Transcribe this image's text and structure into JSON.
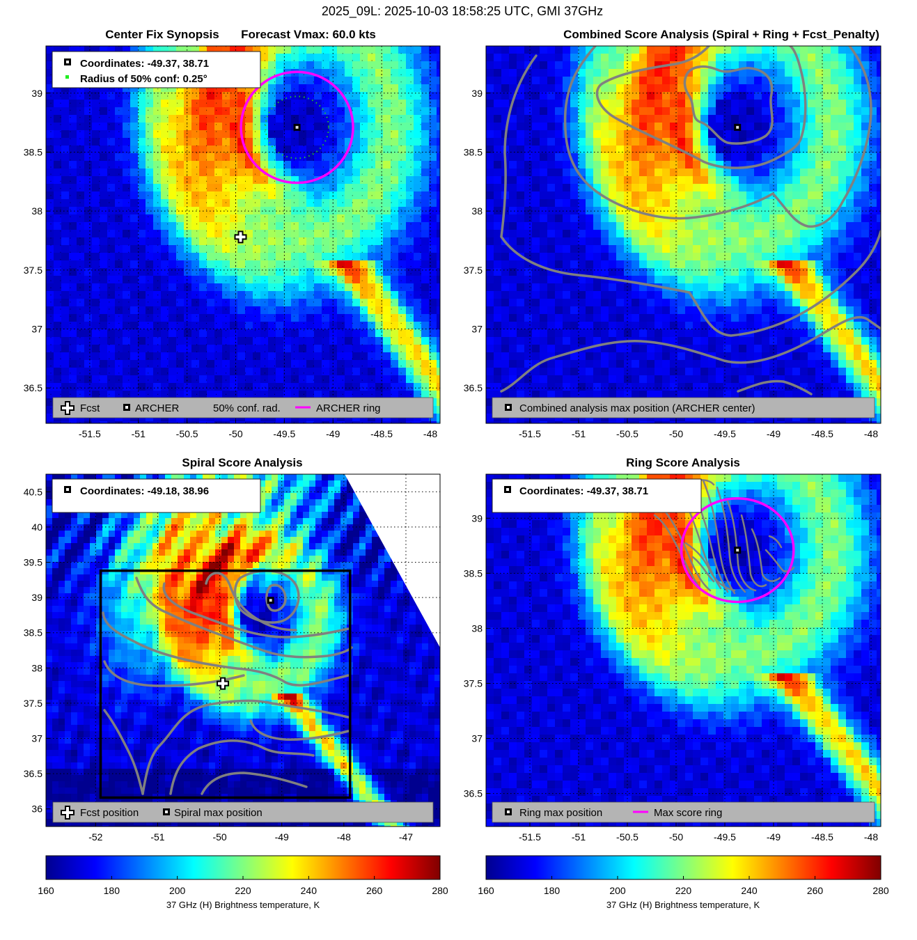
{
  "figure": {
    "suptitle": "2025_09L: 2025-10-03 18:58:25 UTC, GMI 37GHz"
  },
  "colors": {
    "archer_ring": "#ff00ff",
    "conf_radius": "#22cc22",
    "contour": "#808080",
    "legend_bg": "#b4b4b4",
    "colormap": [
      "#00008f",
      "#0000ff",
      "#0080ff",
      "#00ffff",
      "#80ff80",
      "#ffff00",
      "#ff8000",
      "#ff0000",
      "#800000"
    ]
  },
  "chart_data": [
    {
      "id": "synopsis",
      "type": "heatmap",
      "title_left": "Center Fix Synopsis",
      "title_right": "Forecast Vmax: 60.0 kts",
      "xlim": [
        -51.95,
        -47.9
      ],
      "ylim": [
        36.2,
        39.4
      ],
      "xticks": [
        -51.5,
        -51,
        -50.5,
        -50,
        -49.5,
        -49,
        -48.5,
        -48
      ],
      "xtick_labels": [
        "-51.5",
        "-51",
        "-50.5",
        "-50",
        "-49.5",
        "-49",
        "-48.5",
        "-48"
      ],
      "yticks": [
        36.5,
        37,
        37.5,
        38,
        38.5,
        39
      ],
      "ytick_labels": [
        "36.5",
        "37",
        "37.5",
        "38",
        "38.5",
        "39"
      ],
      "grid": true,
      "center": [
        -49.37,
        38.71
      ],
      "fcst": [
        -49.95,
        37.78
      ],
      "ring_radius_deg": 0.48,
      "conf_radius_deg": 0.25,
      "info_lines": [
        "Coordinates: -49.37, 38.71",
        "Radius of 50% conf: 0.25°"
      ],
      "legend": [
        "Fcst",
        "ARCHER",
        "50% conf. rad.",
        "ARCHER ring"
      ]
    },
    {
      "id": "combined",
      "type": "heatmap",
      "title": "Combined Score Analysis (Spiral + Ring + Fcst_Penalty)",
      "xlim": [
        -51.95,
        -47.9
      ],
      "ylim": [
        36.2,
        39.4
      ],
      "xticks": [
        -51.5,
        -51,
        -50.5,
        -50,
        -49.5,
        -49,
        -48.5,
        -48
      ],
      "xtick_labels": [
        "-51.5",
        "-51",
        "-50.5",
        "-50",
        "-49.5",
        "-49",
        "-48.5",
        "-48"
      ],
      "yticks": [
        36.5,
        37,
        37.5,
        38,
        38.5,
        39
      ],
      "ytick_labels": [
        "36.5",
        "37",
        "37.5",
        "38",
        "38.5",
        "39"
      ],
      "grid": true,
      "center": [
        -49.37,
        38.71
      ],
      "legend": [
        "Combined analysis max position (ARCHER center)"
      ]
    },
    {
      "id": "spiral",
      "type": "heatmap",
      "title": "Spiral Score Analysis",
      "xlim": [
        -52.8,
        -46.45
      ],
      "ylim": [
        35.75,
        40.75
      ],
      "xticks": [
        -52,
        -51,
        -50,
        -49,
        -48,
        -47
      ],
      "xtick_labels": [
        "-52",
        "-51",
        "-50",
        "-49",
        "-48",
        "-47"
      ],
      "yticks": [
        36,
        36.5,
        37,
        37.5,
        38,
        38.5,
        39,
        39.5,
        40,
        40.5
      ],
      "ytick_labels": [
        "36",
        "36.5",
        "37",
        "37.5",
        "38",
        "38.5",
        "39",
        "39.5",
        "40",
        "40.5"
      ],
      "grid": true,
      "center": [
        -49.18,
        38.96
      ],
      "fcst": [
        -49.95,
        37.78
      ],
      "search_box": [
        [
          -51.92,
          36.16
        ],
        [
          -47.9,
          39.38
        ]
      ],
      "info_lines": [
        "Coordinates: -49.18, 38.96"
      ],
      "legend": [
        "Fcst position",
        "Spiral max position"
      ]
    },
    {
      "id": "ring",
      "type": "heatmap",
      "title": "Ring Score Analysis",
      "xlim": [
        -51.95,
        -47.9
      ],
      "ylim": [
        36.2,
        39.4
      ],
      "xticks": [
        -51.5,
        -51,
        -50.5,
        -50,
        -49.5,
        -49,
        -48.5,
        -48
      ],
      "xtick_labels": [
        "-51.5",
        "-51",
        "-50.5",
        "-50",
        "-49.5",
        "-49",
        "-48.5",
        "-48"
      ],
      "yticks": [
        36.5,
        37,
        37.5,
        38,
        38.5,
        39
      ],
      "ytick_labels": [
        "36.5",
        "37",
        "37.5",
        "38",
        "38.5",
        "39"
      ],
      "grid": true,
      "center": [
        -49.37,
        38.71
      ],
      "ring_radius_deg": 0.48,
      "info_lines": [
        "Coordinates: -49.37, 38.71"
      ],
      "legend": [
        "Ring max position",
        "Max score ring"
      ]
    }
  ],
  "colorbars": [
    {
      "range": [
        160,
        280
      ],
      "ticks": [
        160,
        180,
        200,
        220,
        240,
        260,
        280
      ],
      "tick_labels": [
        "160",
        "180",
        "200",
        "220",
        "240",
        "260",
        "280"
      ],
      "label": "37 GHz (H) Brightness temperature, K"
    },
    {
      "range": [
        160,
        280
      ],
      "ticks": [
        160,
        180,
        200,
        220,
        240,
        260,
        280
      ],
      "tick_labels": [
        "160",
        "180",
        "200",
        "220",
        "240",
        "260",
        "280"
      ],
      "label": "37 GHz (H) Brightness temperature, K"
    }
  ]
}
